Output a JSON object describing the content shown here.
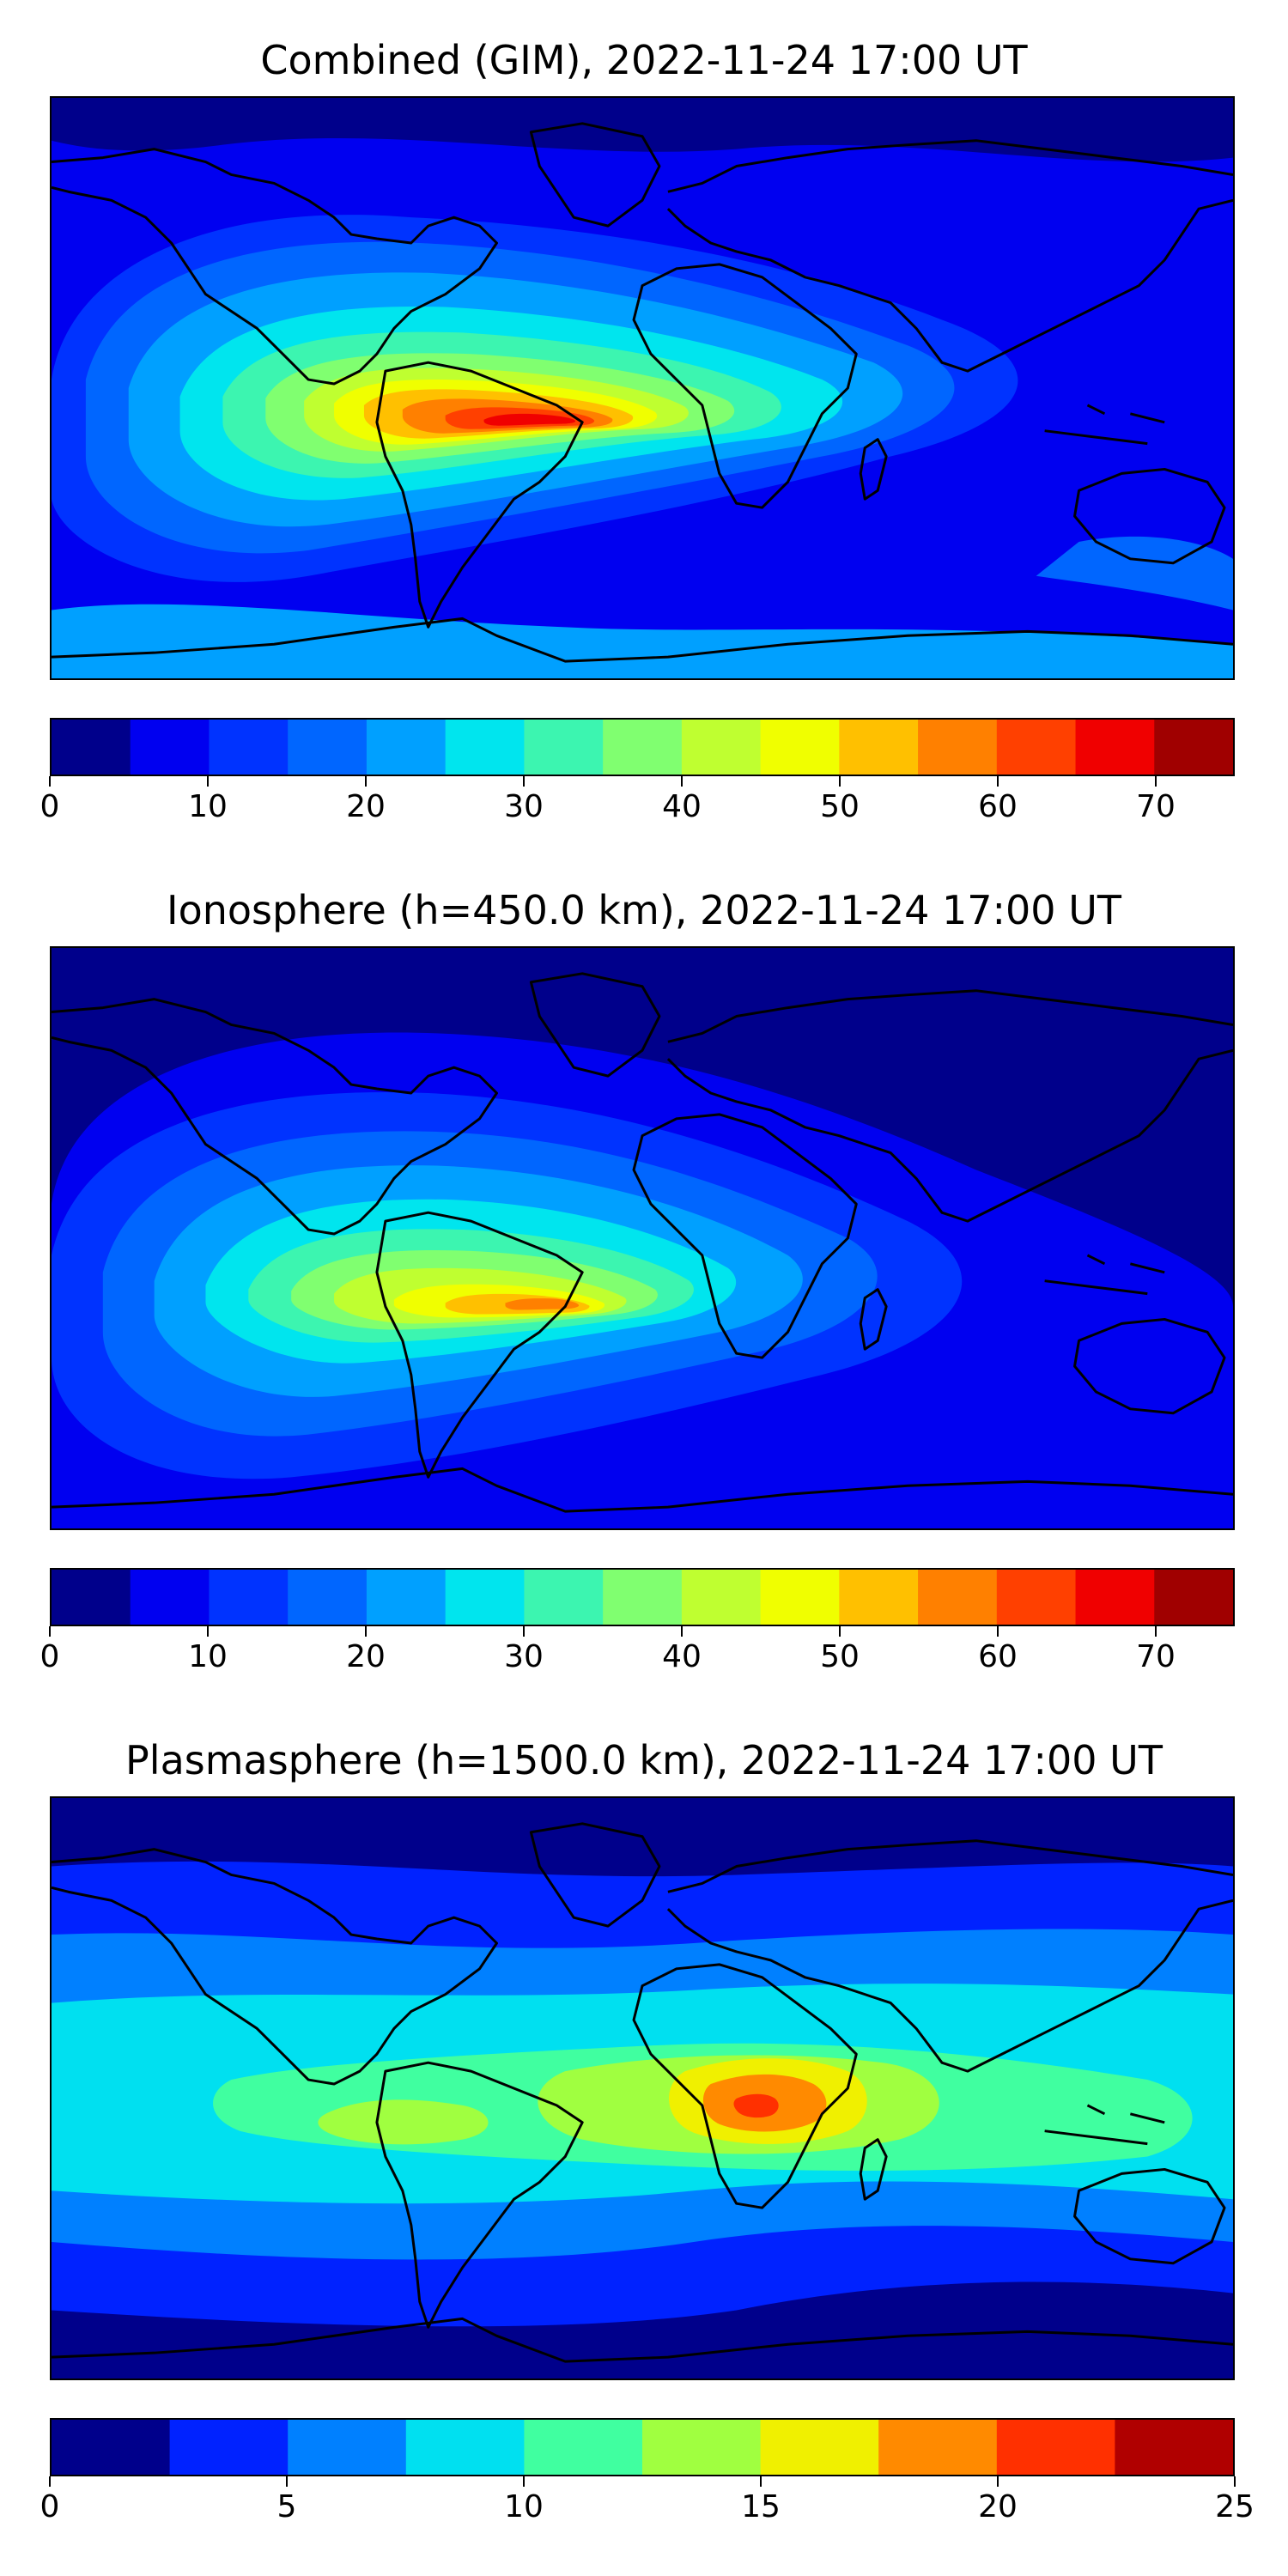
{
  "chart_data": [
    {
      "type": "heatmap",
      "title": "Combined (GIM), 2022-11-24 17:00 UT",
      "colorbar": {
        "min": 0,
        "max": 75,
        "step": 5,
        "ticks": [
          0,
          10,
          20,
          30,
          40,
          50,
          60,
          70
        ],
        "tick_labels": [
          "0",
          "10",
          "20",
          "30",
          "40",
          "50",
          "60",
          "70"
        ],
        "colors": [
          "#00008b",
          "#0000f0",
          "#0033ff",
          "#0066ff",
          "#00a0ff",
          "#00e5ee",
          "#3cf5b0",
          "#80ff70",
          "#bfff30",
          "#f0ff00",
          "#ffc000",
          "#ff8000",
          "#ff4000",
          "#f00000",
          "#a00000"
        ]
      },
      "maximum": {
        "region": "South America (central Brazil)",
        "value": 72
      }
    },
    {
      "type": "heatmap",
      "title": "Ionosphere  (h=450.0 km), 2022-11-24 17:00 UT",
      "colorbar": {
        "min": 0,
        "max": 75,
        "step": 5,
        "ticks": [
          0,
          10,
          20,
          30,
          40,
          50,
          60,
          70
        ],
        "tick_labels": [
          "0",
          "10",
          "20",
          "30",
          "40",
          "50",
          "60",
          "70"
        ],
        "colors": [
          "#00008b",
          "#0000f0",
          "#0033ff",
          "#0066ff",
          "#00a0ff",
          "#00e5ee",
          "#3cf5b0",
          "#80ff70",
          "#bfff30",
          "#f0ff00",
          "#ffc000",
          "#ff8000",
          "#ff4000",
          "#f00000",
          "#a00000"
        ]
      },
      "maximum": {
        "region": "South America (eastern Brazil)",
        "value": 60
      }
    },
    {
      "type": "heatmap",
      "title": "Plasmasphere (h=1500.0 km), 2022-11-24 17:00 UT",
      "colorbar": {
        "min": 0,
        "max": 25,
        "step": 2.5,
        "ticks": [
          0,
          5,
          10,
          15,
          20,
          25
        ],
        "tick_labels": [
          "0",
          "5",
          "10",
          "15",
          "20",
          "25"
        ],
        "colors": [
          "#00008b",
          "#0022ff",
          "#0080ff",
          "#00e0f0",
          "#40ffa0",
          "#a0ff40",
          "#f0f000",
          "#ff8a00",
          "#ff3000",
          "#b00000"
        ]
      },
      "maximum": {
        "region": "East Africa (Ethiopia/Kenya)",
        "value": 21
      }
    }
  ]
}
